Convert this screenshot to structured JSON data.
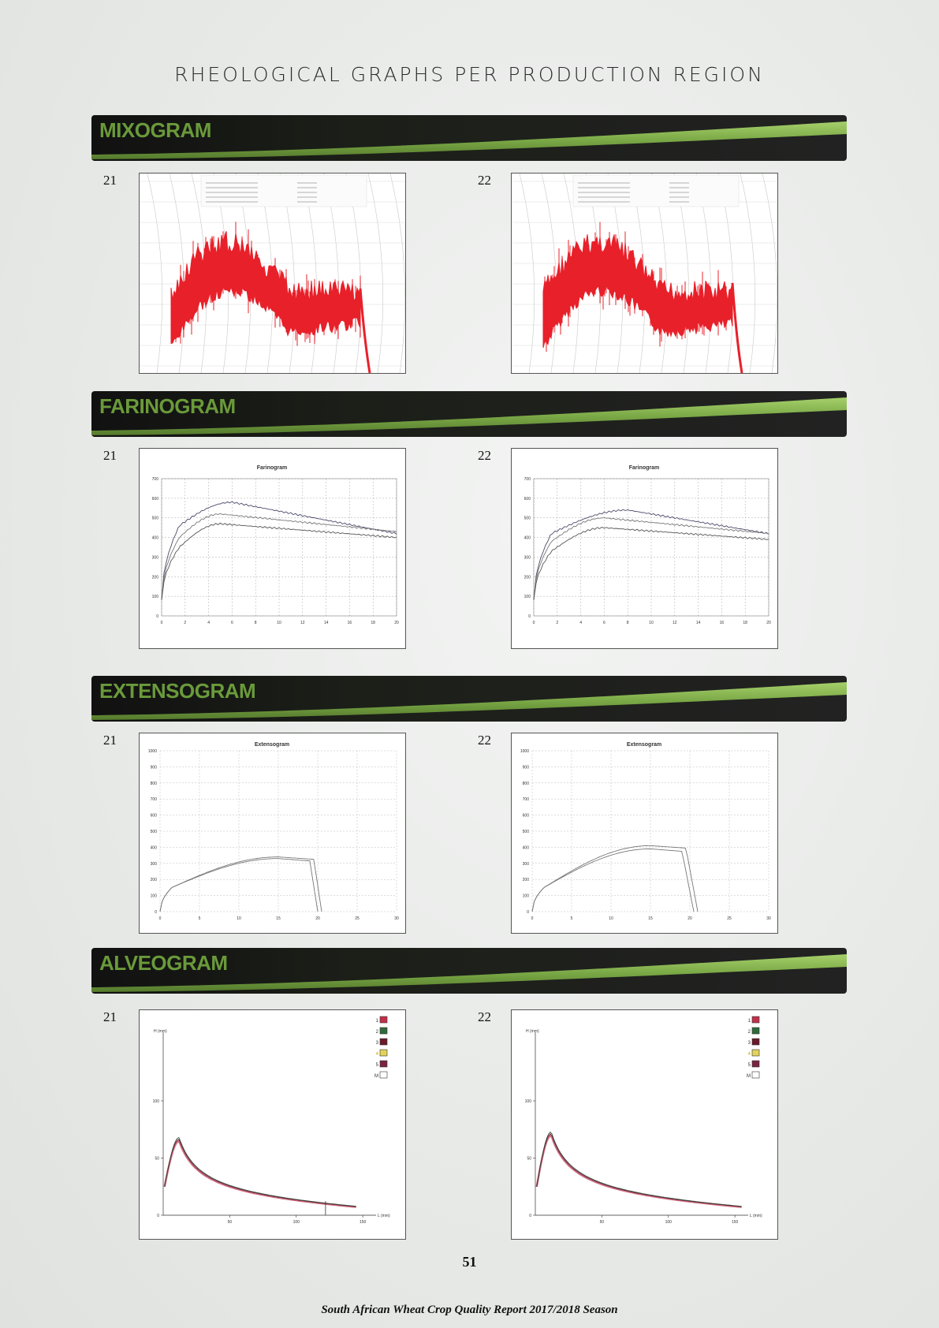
{
  "page_title": "RHEOLOGICAL GRAPHS PER PRODUCTION REGION",
  "sections": [
    {
      "title": "MIXOGRAM",
      "charts": [
        {
          "label": "21"
        },
        {
          "label": "22"
        }
      ]
    },
    {
      "title": "FARINOGRAM",
      "charts": [
        {
          "label": "21",
          "title": "Farinogram"
        },
        {
          "label": "22",
          "title": "Farinogram"
        }
      ]
    },
    {
      "title": "EXTENSOGRAM",
      "charts": [
        {
          "label": "21",
          "title": "Extensogram"
        },
        {
          "label": "22",
          "title": "Extensogram"
        }
      ]
    },
    {
      "title": "ALVEOGRAM",
      "charts": [
        {
          "label": "21"
        },
        {
          "label": "22"
        }
      ]
    }
  ],
  "farinogram_axes": {
    "y_ticks": [
      "0",
      "100",
      "200",
      "300",
      "400",
      "500",
      "600",
      "700"
    ],
    "x_ticks": [
      "0",
      "2",
      "4",
      "6",
      "8",
      "10",
      "12",
      "14",
      "16",
      "18",
      "20"
    ]
  },
  "extensogram_axes": {
    "y_ticks": [
      "0",
      "100",
      "200",
      "300",
      "400",
      "500",
      "600",
      "700",
      "800",
      "900",
      "1000"
    ],
    "x_ticks": [
      "0",
      "5",
      "10",
      "15",
      "20",
      "25",
      "30"
    ]
  },
  "alveogram_axes": {
    "y_label": "H (mm)",
    "x_label": "L (mm)",
    "y_ticks": [
      "0",
      "50",
      "100"
    ],
    "x_ticks": [
      "50",
      "100",
      "150"
    ],
    "legend": [
      {
        "label": "1",
        "color": "#c2304a"
      },
      {
        "label": "2",
        "color": "#2f6b3a"
      },
      {
        "label": "3",
        "color": "#6a1a2a"
      },
      {
        "label": "4",
        "color": "#e3d25a"
      },
      {
        "label": "5",
        "color": "#7a2440"
      },
      {
        "label": "M",
        "color": "#ffffff"
      }
    ]
  },
  "page_number": "51",
  "footer": "South African Wheat Crop Quality Report 2017/2018 Season",
  "colors": {
    "band_green": "#7aa846",
    "band_dark": "#141414",
    "mixo_red": "#e8202a"
  }
}
